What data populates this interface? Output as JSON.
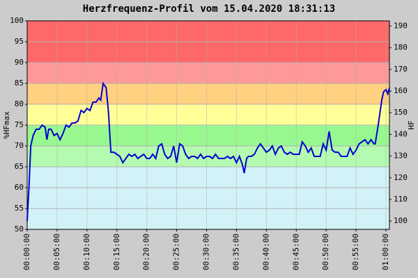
{
  "chart_data": {
    "type": "line",
    "title": "Herzfrequenz-Profil vom 15.04.2020 18:31:13",
    "y_label": "%HFmax",
    "y2_label": "HF",
    "xlim": [
      0,
      60.58
    ],
    "xticks": [
      {
        "value": 0,
        "label": "00:00:00"
      },
      {
        "value": 5,
        "label": "00:05:00"
      },
      {
        "value": 10,
        "label": "00:10:00"
      },
      {
        "value": 15,
        "label": "00:15:00"
      },
      {
        "value": 20,
        "label": "00:20:00"
      },
      {
        "value": 25,
        "label": "00:25:00"
      },
      {
        "value": 30,
        "label": "00:30:00"
      },
      {
        "value": 35,
        "label": "00:35:00"
      },
      {
        "value": 40,
        "label": "00:40:00"
      },
      {
        "value": 45,
        "label": "00:45:00"
      },
      {
        "value": 50,
        "label": "00:50:00"
      },
      {
        "value": 55,
        "label": "00:55:00"
      },
      {
        "value": 60,
        "label": "01:00:00"
      }
    ],
    "ylim": [
      50,
      100
    ],
    "yticks": [
      50,
      55,
      60,
      65,
      70,
      75,
      80,
      85,
      90,
      95,
      100
    ],
    "y2lim": [
      96.2,
      192.4
    ],
    "y2ticks": [
      100,
      110,
      120,
      130,
      140,
      150,
      160,
      170,
      180,
      190
    ],
    "grid": true,
    "bands": [
      {
        "from": 50,
        "to": 65,
        "color": "#d2f2f8"
      },
      {
        "from": 65,
        "to": 70,
        "color": "#b4fab0"
      },
      {
        "from": 70,
        "to": 75,
        "color": "#98f890"
      },
      {
        "from": 75,
        "to": 80,
        "color": "#ffff98"
      },
      {
        "from": 80,
        "to": 85,
        "color": "#ffd080"
      },
      {
        "from": 85,
        "to": 90,
        "color": "#ff9898"
      },
      {
        "from": 90,
        "to": 100,
        "color": "#ff6868"
      }
    ],
    "series": [
      {
        "color": "#0000d0",
        "x": [
          0,
          0.3,
          0.6,
          1,
          1.5,
          2,
          2.5,
          3,
          3.3,
          3.6,
          4,
          4.5,
          5,
          5.5,
          6,
          6.5,
          7,
          7.5,
          8,
          8.5,
          9,
          9.5,
          10,
          10.5,
          11,
          11.5,
          12,
          12.3,
          12.7,
          13.2,
          13.6,
          14,
          14.5,
          15,
          15.5,
          16,
          16.5,
          17,
          17.5,
          18,
          18.5,
          19,
          19.5,
          20,
          20.5,
          21,
          21.5,
          22,
          22.5,
          23,
          23.5,
          24,
          24.5,
          25,
          25.5,
          26,
          26.5,
          27,
          27.5,
          28,
          28.5,
          29,
          29.5,
          30,
          30.5,
          31,
          31.5,
          32,
          32.5,
          33,
          33.5,
          34,
          34.5,
          35,
          35.5,
          36,
          36.3,
          36.7,
          37,
          37.5,
          38,
          38.5,
          39,
          39.5,
          40,
          40.5,
          41,
          41.5,
          42,
          42.5,
          43,
          43.5,
          44,
          44.5,
          45,
          45.5,
          46,
          46.5,
          47,
          47.5,
          48,
          48.5,
          49,
          49.5,
          50,
          50.5,
          51,
          51.5,
          52,
          52.5,
          53,
          53.5,
          54,
          54.5,
          55,
          55.5,
          56,
          56.5,
          57,
          57.5,
          58,
          58.2,
          58.7,
          59,
          59.3,
          59.6,
          60,
          60.3,
          60.6
        ],
        "values": [
          52,
          60,
          70,
          72.5,
          74,
          74,
          75,
          74.5,
          71.5,
          74,
          74,
          72.5,
          73,
          71.5,
          73,
          75,
          74.5,
          75.5,
          75.5,
          76,
          78.5,
          78,
          79,
          78.5,
          80.5,
          80.5,
          81.5,
          81,
          85,
          84,
          78,
          68.5,
          68.5,
          68,
          67.5,
          66,
          67,
          68,
          67.5,
          68,
          67,
          67.5,
          68,
          67,
          67,
          68,
          67,
          70,
          70.5,
          68,
          67,
          67.5,
          70,
          66,
          70.5,
          70,
          68,
          67,
          67.5,
          67.5,
          67,
          68,
          67,
          67.5,
          67.5,
          67,
          68,
          67,
          67,
          67,
          67.5,
          67,
          67.5,
          66,
          67.5,
          65.5,
          63.5,
          67,
          67.5,
          67.5,
          68,
          69.5,
          70.5,
          69.5,
          68.5,
          69,
          70,
          68,
          69.5,
          70,
          68.5,
          68,
          68.5,
          68,
          68,
          68,
          71,
          70,
          68.5,
          69.5,
          67.5,
          67.5,
          67.5,
          70.5,
          69,
          73.5,
          69,
          68.5,
          68.5,
          67.5,
          67.5,
          67.5,
          69.5,
          68,
          69,
          70.5,
          71,
          71.5,
          70.5,
          71.5,
          70.5,
          70.5,
          75,
          78,
          81,
          83,
          83.5,
          82.5,
          84
        ]
      }
    ]
  }
}
